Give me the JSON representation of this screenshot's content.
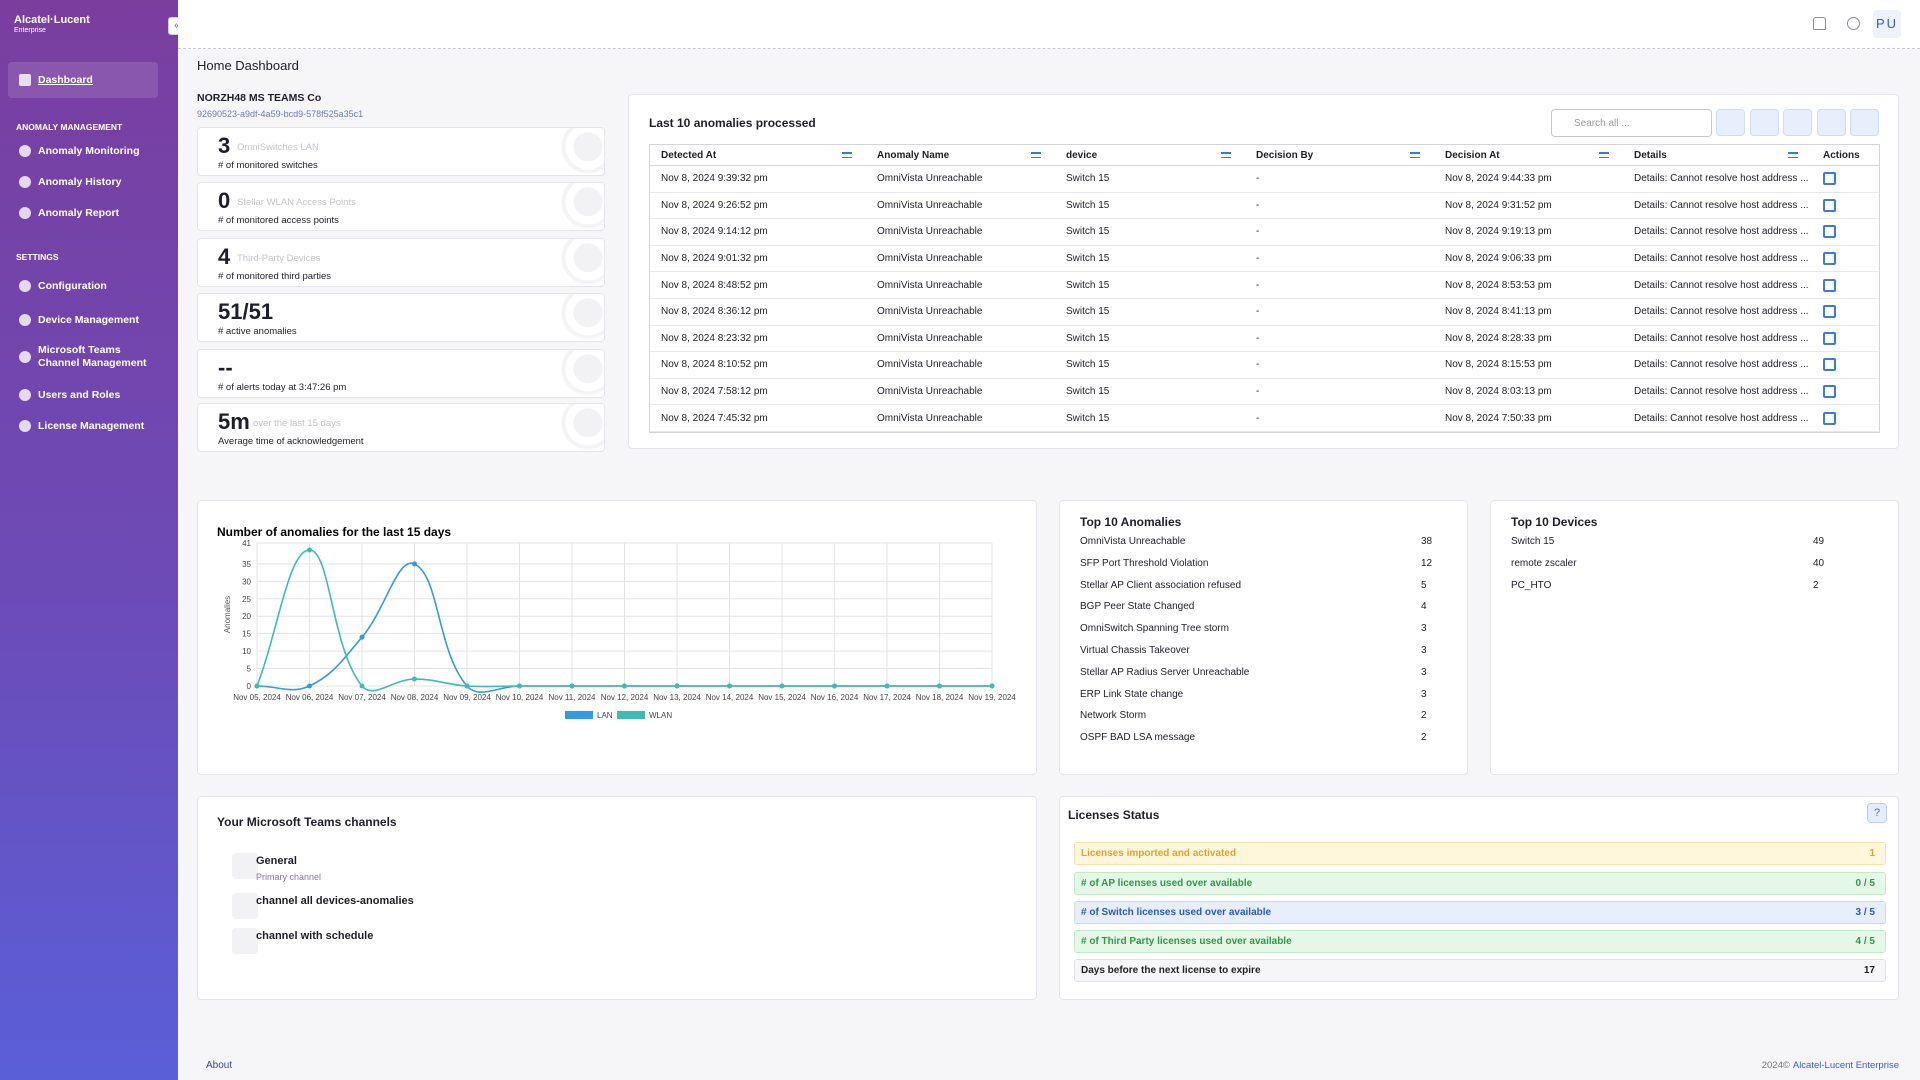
{
  "sidebar": {
    "brand": "Alcatel·Lucent",
    "brand_sub": "Enterprise",
    "active": "Dashboard",
    "sections": [
      {
        "title": "ANOMALY MANAGEMENT",
        "items": [
          "Anomaly Monitoring",
          "Anomaly History",
          "Anomaly Report"
        ]
      },
      {
        "title": "SETTINGS",
        "items": [
          "Configuration",
          "Device Management",
          "Microsoft Teams Channel Management",
          "Users and Roles",
          "License Management"
        ]
      }
    ]
  },
  "header": {
    "avatar": "PU"
  },
  "page_title": "Home Dashboard",
  "org": {
    "name": "NORZH48 MS TEAMS Co",
    "id": "92690523-a9df-4a59-bcd9-578f525a35c1"
  },
  "stats": [
    {
      "value": "3",
      "sub": "OmniSwitches LAN",
      "label": "# of monitored switches"
    },
    {
      "value": "0",
      "sub": "Stellar WLAN Access Points",
      "label": "# of monitored access points"
    },
    {
      "value": "4",
      "sub": "Third-Party Devices",
      "label": "# of monitored third parties"
    },
    {
      "value": "51/51",
      "label": "# active anomalies"
    },
    {
      "value": "--",
      "label": "# of alerts today at 3:47:26 pm"
    },
    {
      "value": "5m",
      "sub": "over the last 15 days",
      "label": "Average time of acknowledgement"
    }
  ],
  "anomalies_table": {
    "title": "Last 10 anomalies processed",
    "search_placeholder": "Search all ...",
    "columns": [
      "Detected At",
      "Anomaly Name",
      "device",
      "Decision By",
      "Decision At",
      "Details",
      "Actions"
    ],
    "rows": [
      [
        "Nov 8, 2024 9:39:32 pm",
        "OmniVista Unreachable",
        "Switch 15",
        "-",
        "Nov 8, 2024 9:44:33 pm",
        "Details: Cannot resolve host address ..."
      ],
      [
        "Nov 8, 2024 9:26:52 pm",
        "OmniVista Unreachable",
        "Switch 15",
        "-",
        "Nov 8, 2024 9:31:52 pm",
        "Details: Cannot resolve host address ..."
      ],
      [
        "Nov 8, 2024 9:14:12 pm",
        "OmniVista Unreachable",
        "Switch 15",
        "-",
        "Nov 8, 2024 9:19:13 pm",
        "Details: Cannot resolve host address ..."
      ],
      [
        "Nov 8, 2024 9:01:32 pm",
        "OmniVista Unreachable",
        "Switch 15",
        "-",
        "Nov 8, 2024 9:06:33 pm",
        "Details: Cannot resolve host address ..."
      ],
      [
        "Nov 8, 2024 8:48:52 pm",
        "OmniVista Unreachable",
        "Switch 15",
        "-",
        "Nov 8, 2024 8:53:53 pm",
        "Details: Cannot resolve host address ..."
      ],
      [
        "Nov 8, 2024 8:36:12 pm",
        "OmniVista Unreachable",
        "Switch 15",
        "-",
        "Nov 8, 2024 8:41:13 pm",
        "Details: Cannot resolve host address ..."
      ],
      [
        "Nov 8, 2024 8:23:32 pm",
        "OmniVista Unreachable",
        "Switch 15",
        "-",
        "Nov 8, 2024 8:28:33 pm",
        "Details: Cannot resolve host address ..."
      ],
      [
        "Nov 8, 2024 8:10:52 pm",
        "OmniVista Unreachable",
        "Switch 15",
        "-",
        "Nov 8, 2024 8:15:53 pm",
        "Details: Cannot resolve host address ..."
      ],
      [
        "Nov 8, 2024 7:58:12 pm",
        "OmniVista Unreachable",
        "Switch 15",
        "-",
        "Nov 8, 2024 8:03:13 pm",
        "Details: Cannot resolve host address ..."
      ],
      [
        "Nov 8, 2024 7:45:32 pm",
        "OmniVista Unreachable",
        "Switch 15",
        "-",
        "Nov 8, 2024 7:50:33 pm",
        "Details: Cannot resolve host address ..."
      ]
    ]
  },
  "chart_data": {
    "type": "line",
    "title": "Number of anomalies for the last 15 days",
    "y_label": "Anomalies",
    "categories": [
      "Nov 05, 2024",
      "Nov 06, 2024",
      "Nov 07, 2024",
      "Nov 08, 2024",
      "Nov 09, 2024",
      "Nov 10, 2024",
      "Nov 11, 2024",
      "Nov 12, 2024",
      "Nov 13, 2024",
      "Nov 14, 2024",
      "Nov 15, 2024",
      "Nov 16, 2024",
      "Nov 17, 2024",
      "Nov 18, 2024",
      "Nov 19, 2024"
    ],
    "series": [
      {
        "name": "LAN",
        "color": "#2e9be3",
        "values": [
          0,
          0,
          14,
          35,
          0,
          0,
          0,
          0,
          0,
          0,
          0,
          0,
          0,
          0,
          0
        ]
      },
      {
        "name": "WLAN",
        "color": "#3cbcb4",
        "values": [
          0,
          39,
          0,
          2,
          0,
          0,
          0,
          0,
          0,
          0,
          0,
          0,
          0,
          0,
          0
        ]
      }
    ],
    "ylim": [
      0,
      41
    ],
    "yticks": [
      0,
      5,
      10,
      15,
      20,
      25,
      30,
      35,
      41
    ],
    "grid": true
  },
  "top_anomalies": {
    "title": "Top 10 Anomalies",
    "rows": [
      [
        "OmniVista Unreachable",
        38
      ],
      [
        "SFP Port Threshold Violation",
        12
      ],
      [
        "Stellar AP Client association refused",
        5
      ],
      [
        "BGP Peer State Changed",
        4
      ],
      [
        "OmniSwitch Spanning Tree storm",
        3
      ],
      [
        "Virtual Chassis Takeover",
        3
      ],
      [
        "Stellar AP Radius Server Unreachable",
        3
      ],
      [
        "ERP Link State change",
        3
      ],
      [
        "Network Storm",
        2
      ],
      [
        "OSPF BAD LSA message",
        2
      ]
    ]
  },
  "top_devices": {
    "title": "Top 10 Devices",
    "rows": [
      [
        "Switch 15",
        49
      ],
      [
        "remote zscaler",
        40
      ],
      [
        "PC_HTO",
        2
      ]
    ]
  },
  "teams": {
    "title": "Your Microsoft Teams channels",
    "channels": [
      {
        "name": "General",
        "sub": "Primary channel"
      },
      {
        "name": "channel all devices-anomalies"
      },
      {
        "name": "channel with schedule"
      }
    ]
  },
  "licenses": {
    "title": "Licenses Status",
    "rows": [
      [
        "Licenses imported and activated",
        "1"
      ],
      [
        "# of AP licenses used over available",
        "0 / 5"
      ],
      [
        "# of Switch licenses used over available",
        "3 / 5"
      ],
      [
        "# of Third Party licenses used over available",
        "4 / 5"
      ],
      [
        "Days before the next license to expire",
        "17"
      ]
    ]
  },
  "footer": {
    "about": "About",
    "copyright": "2024©",
    "company": "Alcatel-Lucent Enterprise"
  }
}
